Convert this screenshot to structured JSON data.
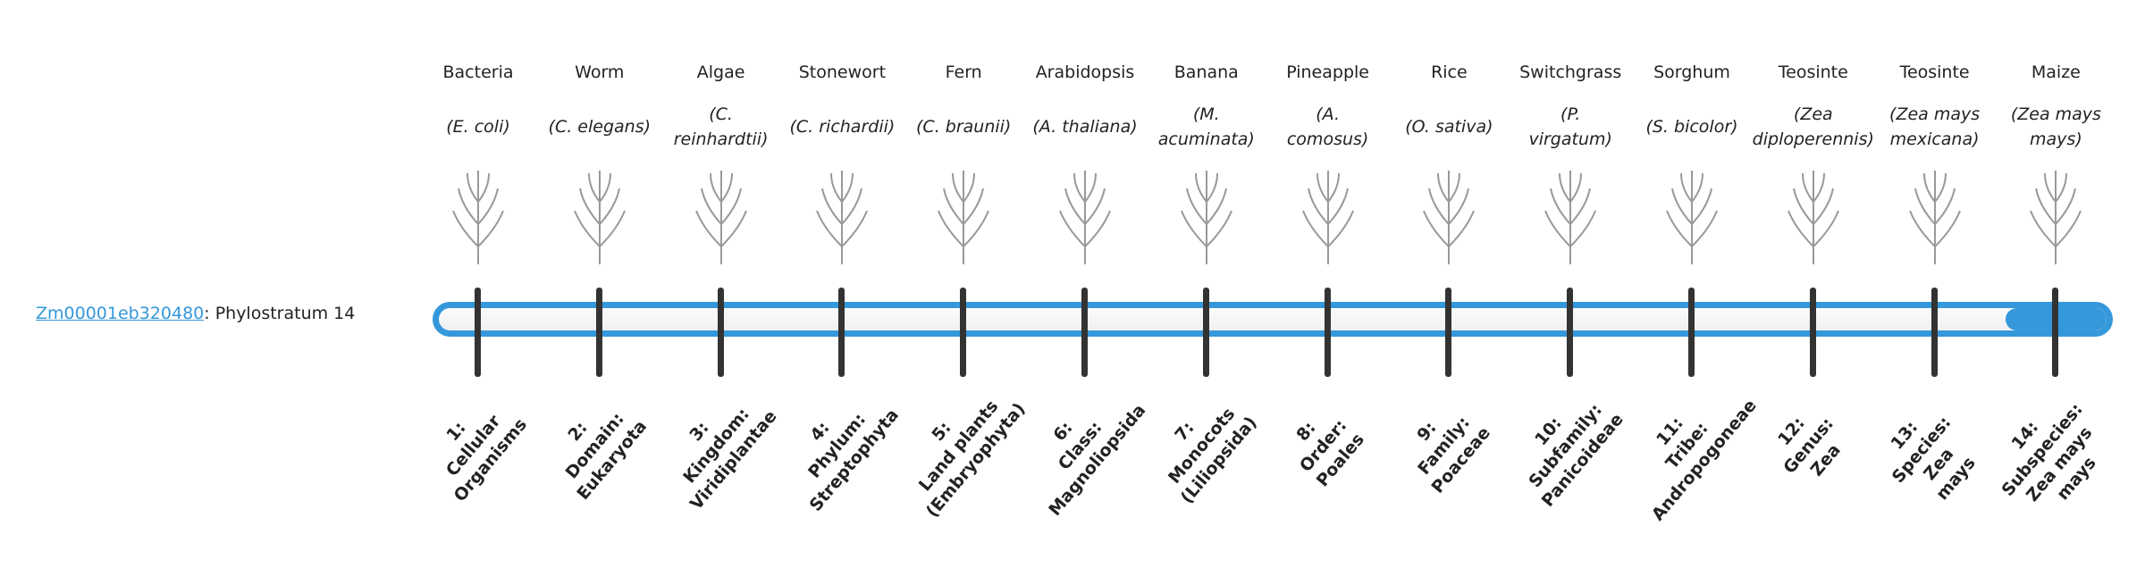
{
  "gene": {
    "id": "Zm00001eb320480",
    "suffix": ": Phylostratum 14"
  },
  "progress": {
    "stratum": 14,
    "total": 14,
    "fill_color": "#3498db"
  },
  "columns": [
    {
      "name": "Bacteria",
      "sci": [
        "(E. coli)"
      ],
      "rank": [
        "1:",
        "Cellular",
        "Organisms"
      ],
      "icon": "bacteria-icon"
    },
    {
      "name": "Worm",
      "sci": [
        "(C. elegans)"
      ],
      "rank": [
        "2:",
        "Domain:",
        "Eukaryota"
      ],
      "icon": "worm-icon"
    },
    {
      "name": "Algae",
      "sci": [
        "(C.",
        "reinhardtii)"
      ],
      "rank": [
        "3:",
        "Kingdom:",
        "Viridiplantae"
      ],
      "icon": "algae-icon"
    },
    {
      "name": "Stonewort",
      "sci": [
        "(C. richardii)"
      ],
      "rank": [
        "4:",
        "Phylum:",
        "Streptophyta"
      ],
      "icon": "stonewort-icon"
    },
    {
      "name": "Fern",
      "sci": [
        "(C. braunii)"
      ],
      "rank": [
        "5:",
        "Land plants",
        "(Embryophyta)"
      ],
      "icon": "fern-icon"
    },
    {
      "name": "Arabidopsis",
      "sci": [
        "(A. thaliana)"
      ],
      "rank": [
        "6:",
        "Class:",
        "Magnoliopsida"
      ],
      "icon": "arabidopsis-icon"
    },
    {
      "name": "Banana",
      "sci": [
        "(M.",
        "acuminata)"
      ],
      "rank": [
        "7:",
        "Monocots",
        "(Liliopsida)"
      ],
      "icon": "banana-icon"
    },
    {
      "name": "Pineapple",
      "sci": [
        "(A.",
        "comosus)"
      ],
      "rank": [
        "8:",
        "Order:",
        "Poales"
      ],
      "icon": "pineapple-icon"
    },
    {
      "name": "Rice",
      "sci": [
        "(O. sativa)"
      ],
      "rank": [
        "9:",
        "Family:",
        "Poaceae"
      ],
      "icon": "rice-icon"
    },
    {
      "name": "Switchgrass",
      "sci": [
        "(P.",
        "virgatum)"
      ],
      "rank": [
        "10:",
        "Subfamily:",
        "Panicoideae"
      ],
      "icon": "switchgrass-icon"
    },
    {
      "name": "Sorghum",
      "sci": [
        "(S. bicolor)"
      ],
      "rank": [
        "11:",
        "Tribe:",
        "Andropogoneae"
      ],
      "icon": "sorghum-icon"
    },
    {
      "name": "Teosinte",
      "sci": [
        "(Zea",
        "diploperennis)"
      ],
      "rank": [
        "12:",
        "Genus:",
        "Zea"
      ],
      "icon": "teosinte-icon"
    },
    {
      "name": "Teosinte",
      "sci": [
        "(Zea mays",
        "mexicana)"
      ],
      "rank": [
        "13:",
        "Species:",
        "Zea",
        "mays"
      ],
      "icon": "teosinte-mexicana-icon"
    },
    {
      "name": "Maize",
      "sci": [
        "(Zea mays",
        "mays)"
      ],
      "rank": [
        "14:",
        "Subspecies:",
        "Zea mays",
        "mays"
      ],
      "icon": "maize-icon"
    }
  ]
}
